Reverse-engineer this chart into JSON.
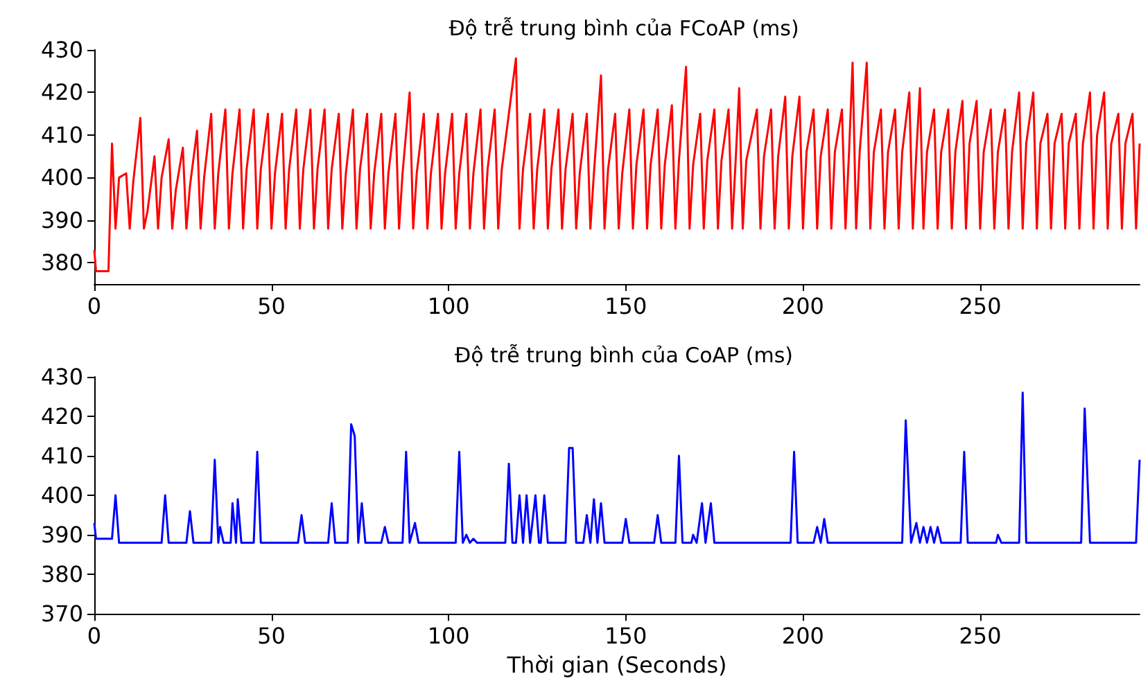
{
  "chart_data": [
    {
      "type": "line",
      "title": "Độ trễ trung bình của FCoAP (ms)",
      "color": "#ff0000",
      "xlim": [
        0,
        295
      ],
      "xticks": [
        0,
        50,
        100,
        150,
        200,
        250
      ],
      "ylim": [
        375,
        430
      ],
      "yticks": [
        380,
        390,
        400,
        410,
        420,
        430
      ],
      "grid": false,
      "marker": "none",
      "line_style": "solid",
      "x": [
        0,
        0.5,
        4,
        5,
        6,
        7,
        9,
        10,
        11,
        13,
        14,
        15,
        17,
        18,
        19,
        21,
        22,
        23,
        25,
        26,
        27,
        29,
        30,
        31,
        33,
        34,
        35,
        37,
        38,
        39,
        41,
        42,
        43,
        45,
        46,
        47,
        49,
        50,
        51,
        53,
        54,
        55,
        57,
        58,
        59,
        61,
        62,
        63,
        65,
        66,
        67,
        69,
        70,
        71,
        73,
        74,
        75,
        77,
        78,
        79,
        81,
        82,
        83,
        85,
        86,
        87,
        89,
        90,
        91,
        93,
        94,
        95,
        97,
        98,
        99,
        101,
        102,
        103,
        105,
        106,
        107,
        109,
        110,
        111,
        113,
        114,
        115,
        119,
        120,
        121,
        123,
        124,
        125,
        127,
        128,
        129,
        131,
        132,
        133,
        135,
        136,
        137,
        139,
        140,
        141,
        143,
        144,
        145,
        147,
        148,
        149,
        151,
        152,
        153,
        155,
        156,
        157,
        159,
        160,
        161,
        163,
        164,
        165,
        167,
        168,
        169,
        171,
        172,
        173,
        175,
        176,
        177,
        179,
        180,
        181,
        182,
        183,
        184,
        187,
        188,
        189,
        191,
        192,
        193,
        195,
        196,
        197,
        199,
        200,
        201,
        203,
        204,
        205,
        207,
        208,
        209,
        211,
        212,
        213,
        214,
        215,
        216,
        218,
        219,
        220,
        222,
        223,
        224,
        226,
        227,
        228,
        230,
        231,
        232,
        233,
        234,
        235,
        237,
        238,
        239,
        241,
        242,
        243,
        245,
        246,
        247,
        249,
        250,
        251,
        253,
        254,
        255,
        257,
        258,
        259,
        261,
        262,
        263,
        265,
        266,
        267,
        269,
        270,
        271,
        273,
        274,
        275,
        277,
        278,
        279,
        281,
        282,
        283,
        285,
        286,
        287,
        289,
        290,
        291,
        293,
        294,
        295
      ],
      "values": [
        383,
        378,
        378,
        408,
        388,
        400,
        401,
        388,
        399,
        414,
        388,
        392,
        405,
        388,
        400,
        409,
        388,
        397,
        407,
        388,
        398,
        411,
        388,
        400,
        415,
        388,
        401,
        416,
        388,
        401,
        416,
        388,
        402,
        416,
        388,
        402,
        415,
        388,
        401,
        415,
        388,
        402,
        416,
        388,
        402,
        416,
        388,
        402,
        416,
        388,
        402,
        415,
        388,
        401,
        416,
        388,
        402,
        415,
        388,
        401,
        415,
        388,
        401,
        415,
        388,
        401,
        420,
        388,
        401,
        415,
        388,
        401,
        415,
        388,
        401,
        415,
        388,
        401,
        415,
        388,
        401,
        416,
        388,
        402,
        416,
        388,
        402,
        428,
        388,
        402,
        415,
        388,
        402,
        416,
        388,
        402,
        416,
        388,
        402,
        415,
        388,
        401,
        415,
        388,
        401,
        424,
        388,
        402,
        415,
        388,
        401,
        416,
        388,
        403,
        416,
        388,
        403,
        416,
        388,
        403,
        417,
        388,
        404,
        426,
        388,
        403,
        415,
        388,
        404,
        416,
        388,
        404,
        416,
        388,
        404,
        421,
        388,
        404,
        416,
        388,
        405,
        416,
        388,
        405,
        419,
        388,
        405,
        419,
        388,
        406,
        416,
        388,
        405,
        416,
        388,
        406,
        416,
        388,
        406,
        427,
        388,
        406,
        427,
        388,
        406,
        416,
        388,
        406,
        416,
        388,
        406,
        420,
        388,
        406,
        421,
        388,
        406,
        416,
        388,
        406,
        416,
        388,
        406,
        418,
        388,
        408,
        418,
        388,
        406,
        416,
        388,
        406,
        416,
        388,
        406,
        420,
        388,
        408,
        420,
        388,
        408,
        415,
        388,
        408,
        415,
        388,
        408,
        415,
        388,
        408,
        420,
        388,
        410,
        420,
        388,
        408,
        415,
        388,
        408,
        415,
        388,
        408
      ]
    },
    {
      "type": "line",
      "title": "Độ trễ trung bình của CoAP (ms)",
      "xlabel": "Thời gian (Seconds)",
      "color": "#0000ff",
      "xlim": [
        0,
        295
      ],
      "xticks": [
        0,
        50,
        100,
        150,
        200,
        250
      ],
      "ylim": [
        370,
        430
      ],
      "yticks": [
        370,
        380,
        390,
        400,
        410,
        420,
        430
      ],
      "grid": false,
      "marker": "none",
      "line_style": "solid",
      "x": [
        0,
        0.5,
        5,
        6,
        7,
        19,
        20,
        21,
        26,
        27,
        28,
        33,
        34,
        35,
        35.5,
        36.5,
        38.5,
        39,
        40,
        40.5,
        41.5,
        45,
        46,
        47,
        57.5,
        58.5,
        59.5,
        66,
        67,
        68,
        71.5,
        72.5,
        73.5,
        74.5,
        75.5,
        76.5,
        81,
        82,
        83,
        87,
        88,
        89,
        90.5,
        91.5,
        102,
        103,
        104,
        105,
        106,
        107,
        108,
        116,
        117,
        118,
        119,
        120,
        121,
        122,
        123,
        124.5,
        125.5,
        126,
        127,
        128,
        133,
        134,
        135,
        136,
        138,
        139,
        140,
        141,
        142,
        143,
        144,
        149,
        150,
        151,
        158,
        159,
        160,
        164,
        165,
        166,
        168.5,
        169,
        170,
        171.5,
        172.5,
        174,
        175,
        196.5,
        197.5,
        198.5,
        203,
        204,
        205,
        206,
        207,
        228,
        229,
        230.5,
        232,
        233,
        234,
        235,
        236,
        237,
        238,
        239,
        244.5,
        245.5,
        246.5,
        254.5,
        255,
        256,
        261,
        262,
        263,
        278.5,
        279.5,
        281,
        294,
        295
      ],
      "values": [
        393,
        389,
        389,
        400,
        388,
        388,
        400,
        388,
        388,
        396,
        388,
        388,
        409,
        388,
        392,
        388,
        388,
        398,
        388,
        399,
        388,
        388,
        411,
        388,
        388,
        395,
        388,
        388,
        398,
        388,
        388,
        418,
        415,
        388,
        398,
        388,
        388,
        392,
        388,
        388,
        411,
        388,
        393,
        388,
        388,
        411,
        388,
        390,
        388,
        389,
        388,
        388,
        408,
        388,
        388,
        400,
        388,
        400,
        388,
        400,
        388,
        388,
        400,
        388,
        388,
        412,
        412,
        388,
        388,
        395,
        388,
        399,
        388,
        398,
        388,
        388,
        394,
        388,
        388,
        395,
        388,
        388,
        410,
        388,
        388,
        390,
        388,
        398,
        388,
        398,
        388,
        388,
        411,
        388,
        388,
        392,
        388,
        394,
        388,
        388,
        419,
        388,
        393,
        388,
        392,
        388,
        392,
        388,
        392,
        388,
        388,
        411,
        388,
        388,
        390,
        388,
        388,
        426,
        388,
        388,
        422,
        388,
        388,
        409
      ]
    }
  ]
}
